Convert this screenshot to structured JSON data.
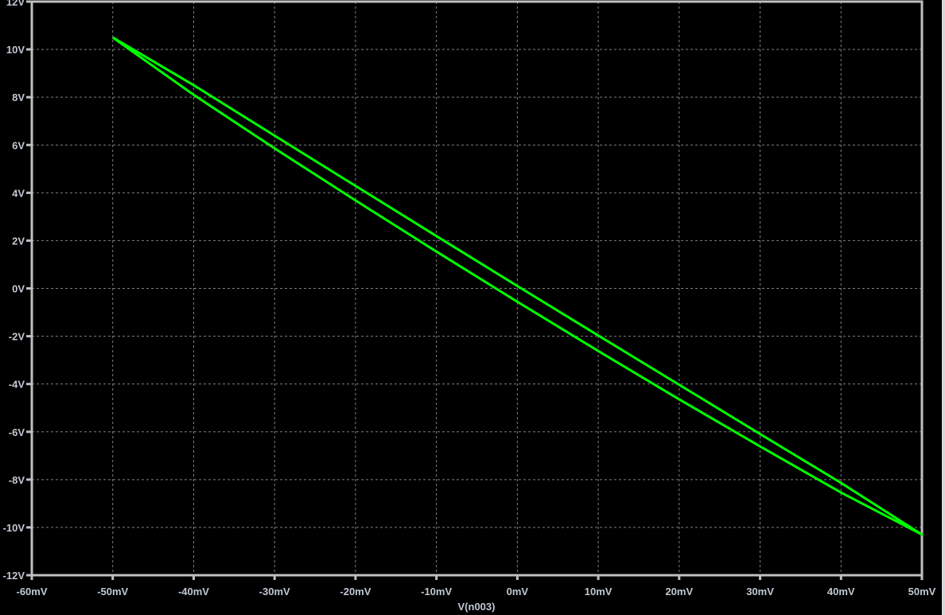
{
  "chart_data": {
    "type": "line",
    "title": "",
    "xlabel": "V(n003)",
    "ylabel": "",
    "xlim": [
      -60,
      50
    ],
    "ylim": [
      -12,
      12
    ],
    "x_unit": "mV",
    "y_unit": "V",
    "grid": true,
    "background": "#000000",
    "x_ticks": [
      "-60mV",
      "-50mV",
      "-40mV",
      "-30mV",
      "-20mV",
      "-10mV",
      "0mV",
      "10mV",
      "20mV",
      "30mV",
      "40mV",
      "50mV"
    ],
    "x_tick_values": [
      -60,
      -50,
      -40,
      -30,
      -20,
      -10,
      0,
      10,
      20,
      30,
      40,
      50
    ],
    "y_ticks": [
      "12V",
      "10V",
      "8V",
      "6V",
      "4V",
      "2V",
      "0V",
      "-2V",
      "-4V",
      "-6V",
      "-8V",
      "-10V",
      "-12V"
    ],
    "y_tick_values": [
      12,
      10,
      8,
      6,
      4,
      2,
      0,
      -2,
      -4,
      -6,
      -8,
      -10,
      -12
    ],
    "series": [
      {
        "color": "#00ff00",
        "x": [
          -50,
          -40,
          -30,
          -20,
          -10,
          0,
          10,
          20,
          30,
          40,
          50,
          40,
          30,
          20,
          10,
          0,
          -10,
          -20,
          -30,
          -40,
          -50
        ],
        "y": [
          10.5,
          8.5,
          6.39,
          4.29,
          2.19,
          0.1,
          -1.97,
          -4.03,
          -6.09,
          -8.14,
          -10.3,
          -8.54,
          -6.61,
          -4.64,
          -2.62,
          -0.56,
          1.54,
          3.68,
          5.86,
          8.1,
          10.5
        ]
      }
    ]
  }
}
